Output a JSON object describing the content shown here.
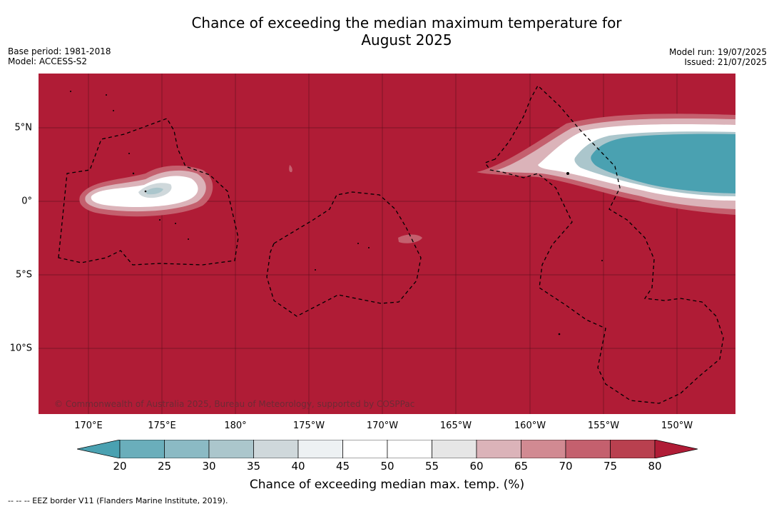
{
  "title": "Chance of exceeding the median maximum temperature for\nAugust 2025",
  "title_line1": "Chance of exceeding the median maximum temperature for",
  "title_line2": "August 2025",
  "base_period": "Base period: 1981-2018",
  "model": "Model: ACCESS-S2",
  "model_run": "Model run: 19/07/2025",
  "issued": "Issued: 21/07/2025",
  "copyright": "© Commonwealth of Australia 2025, Bureau of Meteorology, supported by COSPPac",
  "lon_ticks": [
    "170°E",
    "175°E",
    "180°",
    "175°W",
    "170°W",
    "165°W",
    "160°W",
    "155°W",
    "150°W"
  ],
  "lat_ticks": [
    "5°N",
    "0°",
    "5°S",
    "10°S"
  ],
  "colorbar": {
    "labels": [
      "20",
      "25",
      "30",
      "35",
      "40",
      "45",
      "50",
      "55",
      "60",
      "65",
      "70",
      "75",
      "80"
    ],
    "colors": [
      "#4aa1b1",
      "#6aaebb",
      "#8bbac4",
      "#abc6cc",
      "#cfd8db",
      "#edf1f3",
      "#ffffff",
      "#ffffff",
      "#e6e6e6",
      "#dbb3b9",
      "#d18a92",
      "#c4606e",
      "#b9404f",
      "#b01c36"
    ],
    "title": "Chance of exceeding median max. temp. (%)"
  },
  "legend_note": "--  --  -- EEZ border V11 (Flanders Marine Institute, 2019).",
  "colors": {
    "high": "#b01c36",
    "low": "#4aa1b1"
  }
}
